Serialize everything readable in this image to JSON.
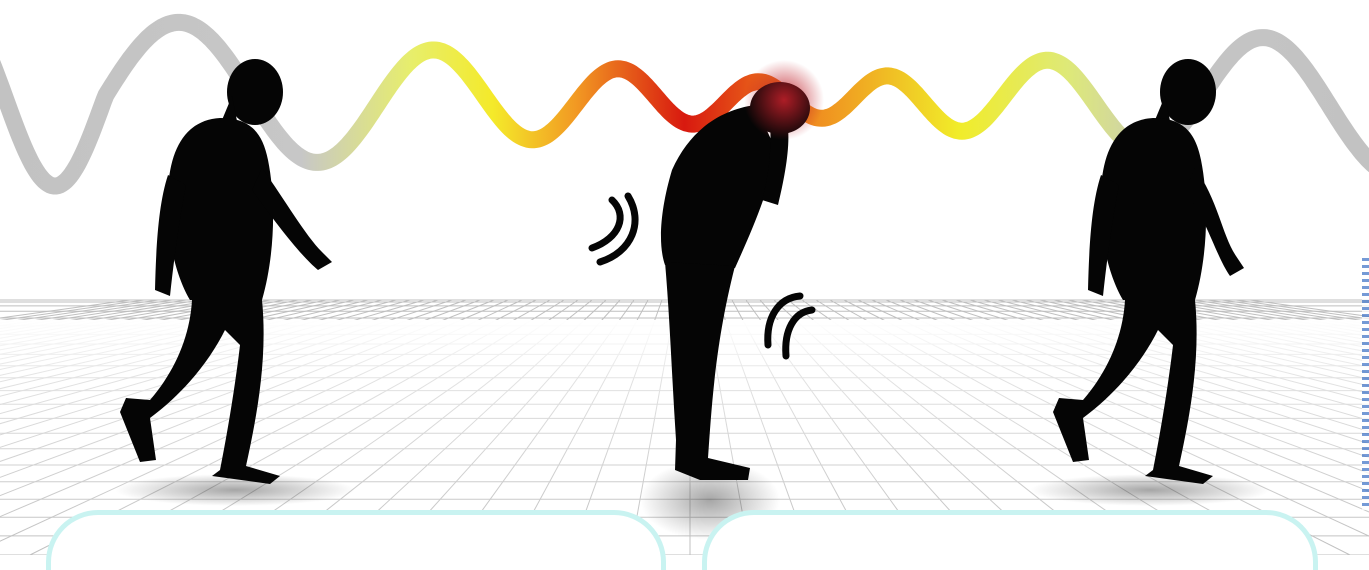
{
  "image": {
    "subject": "walking-silhouettes-with-wave",
    "colors": {
      "wave_gray": "#c4c4c4",
      "wave_yellow": "#f0ef2e",
      "wave_orange": "#ef8a1e",
      "wave_red": "#d81f12",
      "silhouette": "#050505",
      "grid_line": "#8b8b8b",
      "panel_border": "#c9f3f1",
      "background": "#ffffff"
    },
    "figures": [
      {
        "pose": "walking"
      },
      {
        "pose": "bending-forward"
      },
      {
        "pose": "walking"
      }
    ]
  }
}
